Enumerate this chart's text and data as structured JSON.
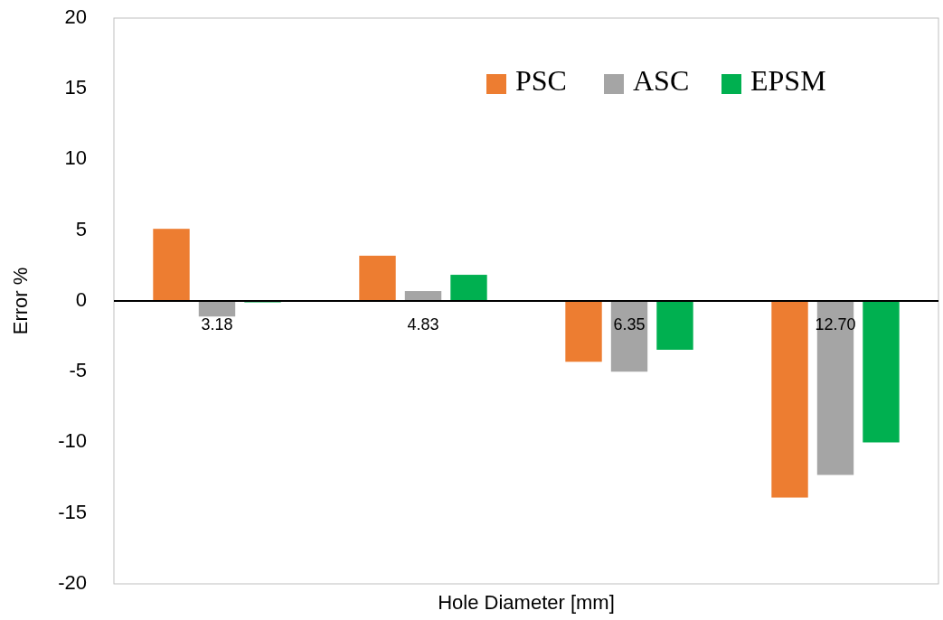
{
  "chart_data": {
    "type": "bar",
    "xlabel": "Hole Diameter [mm]",
    "ylabel": "Error %",
    "categories": [
      "3.18",
      "4.83",
      "6.35",
      "12.70"
    ],
    "series": [
      {
        "name": "PSC",
        "color": "#ed7d31",
        "values": [
          5.1,
          3.2,
          -4.3,
          -13.9
        ]
      },
      {
        "name": "ASC",
        "color": "#a5a5a5",
        "values": [
          -1.1,
          0.7,
          -5.0,
          -12.3
        ]
      },
      {
        "name": "EPSM",
        "color": "#00b050",
        "values": [
          -0.1,
          1.85,
          -3.45,
          -10.0
        ]
      }
    ],
    "ylim": [
      -20,
      20
    ],
    "yticks": [
      -20,
      -15,
      -10,
      -5,
      0,
      5,
      10,
      15,
      20
    ],
    "grid": false,
    "legend": "top right"
  }
}
